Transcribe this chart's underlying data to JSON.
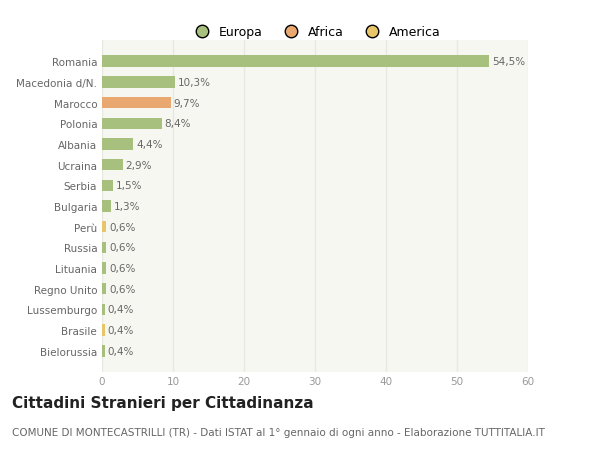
{
  "categories": [
    "Bielorussia",
    "Brasile",
    "Lussemburgo",
    "Regno Unito",
    "Lituania",
    "Russia",
    "Perù",
    "Bulgaria",
    "Serbia",
    "Ucraina",
    "Albania",
    "Polonia",
    "Marocco",
    "Macedonia d/N.",
    "Romania"
  ],
  "values": [
    0.4,
    0.4,
    0.4,
    0.6,
    0.6,
    0.6,
    0.6,
    1.3,
    1.5,
    2.9,
    4.4,
    8.4,
    9.7,
    10.3,
    54.5
  ],
  "labels": [
    "0,4%",
    "0,4%",
    "0,4%",
    "0,6%",
    "0,6%",
    "0,6%",
    "0,6%",
    "1,3%",
    "1,5%",
    "2,9%",
    "4,4%",
    "8,4%",
    "9,7%",
    "10,3%",
    "54,5%"
  ],
  "colors": [
    "#a8c07e",
    "#e8c46a",
    "#a8c07e",
    "#a8c07e",
    "#a8c07e",
    "#a8c07e",
    "#e8c46a",
    "#a8c07e",
    "#a8c07e",
    "#a8c07e",
    "#a8c07e",
    "#a8c07e",
    "#e8a870",
    "#a8c07e",
    "#a8c07e"
  ],
  "legend_labels": [
    "Europa",
    "Africa",
    "America"
  ],
  "legend_colors": [
    "#a8c07e",
    "#e8a870",
    "#e8c46a"
  ],
  "title": "Cittadini Stranieri per Cittadinanza",
  "subtitle": "COMUNE DI MONTECASTRILLI (TR) - Dati ISTAT al 1° gennaio di ogni anno - Elaborazione TUTTITALIA.IT",
  "xlim": [
    0,
    60
  ],
  "xticks": [
    0,
    10,
    20,
    30,
    40,
    50,
    60
  ],
  "background_color": "#ffffff",
  "plot_bg_color": "#f7f7f2",
  "grid_color": "#e8e8e0",
  "bar_height": 0.55,
  "title_fontsize": 11,
  "subtitle_fontsize": 7.5,
  "label_fontsize": 7.5,
  "tick_fontsize": 7.5,
  "legend_fontsize": 9
}
